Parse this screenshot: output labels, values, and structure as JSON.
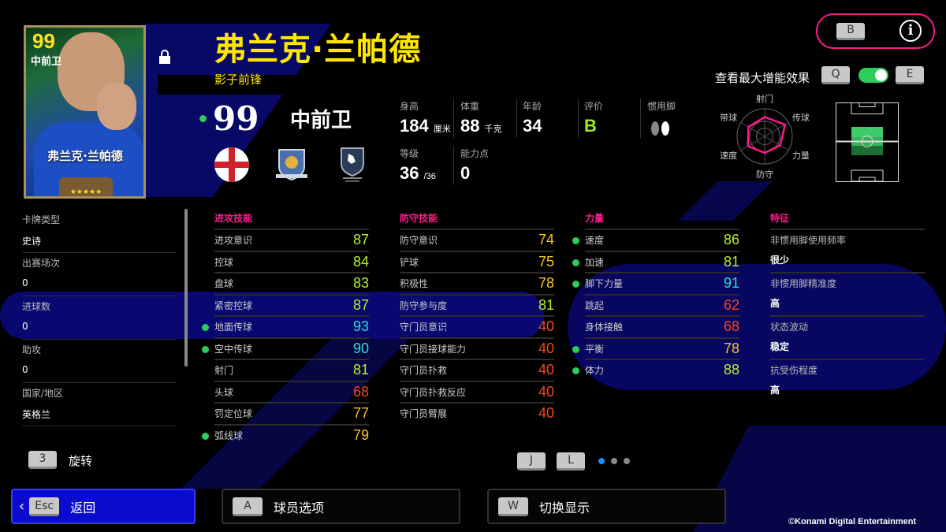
{
  "player": {
    "name": "弗兰克·兰帕德",
    "playing_style": "影子前锋",
    "overall": "99",
    "position": "中前卫",
    "card_stars": "★★★★★"
  },
  "top_right": {
    "b_key": "B",
    "info_icon": "info-icon"
  },
  "boost": {
    "label": "查看最大增能效果",
    "q_key": "Q",
    "e_key": "E",
    "toggle_on": true
  },
  "info": {
    "height_label": "身高",
    "height": "184",
    "height_unit": "厘米",
    "weight_label": "体重",
    "weight": "88",
    "weight_unit": "千克",
    "age_label": "年龄",
    "age": "34",
    "rating_label": "评价",
    "rating": "B",
    "foot_label": "惯用脚",
    "level_label": "等级",
    "level": "36",
    "level_max": "/36",
    "points_label": "能力点",
    "points": "0"
  },
  "radar": {
    "labels": [
      "射门",
      "传球",
      "力量",
      "防守",
      "速度",
      "带球"
    ],
    "values": [
      0.7,
      0.85,
      0.65,
      0.6,
      0.7,
      0.68
    ],
    "color": "#ff1a8c"
  },
  "left_panel": [
    {
      "label": "卡牌类型",
      "value": "史诗"
    },
    {
      "label": "出赛场次",
      "value": "0"
    },
    {
      "label": "进球数",
      "value": "0"
    },
    {
      "label": "助攻",
      "value": "0"
    },
    {
      "label": "国家/地区",
      "value": "英格兰"
    }
  ],
  "stats": [
    {
      "title": "进攻技能",
      "rows": [
        {
          "label": "进攻意识",
          "value": 87,
          "boost": false
        },
        {
          "label": "控球",
          "value": 84,
          "boost": false
        },
        {
          "label": "盘球",
          "value": 83,
          "boost": false
        },
        {
          "label": "紧密控球",
          "value": 87,
          "boost": false
        },
        {
          "label": "地面传球",
          "value": 93,
          "boost": true
        },
        {
          "label": "空中传球",
          "value": 90,
          "boost": true
        },
        {
          "label": "射门",
          "value": 81,
          "boost": false
        },
        {
          "label": "头球",
          "value": 68,
          "boost": false
        },
        {
          "label": "罚定位球",
          "value": 77,
          "boost": false
        },
        {
          "label": "弧线球",
          "value": 79,
          "boost": true
        }
      ]
    },
    {
      "title": "防守技能",
      "rows": [
        {
          "label": "防守意识",
          "value": 74,
          "boost": false
        },
        {
          "label": "铲球",
          "value": 75,
          "boost": false
        },
        {
          "label": "积极性",
          "value": 78,
          "boost": false
        },
        {
          "label": "防守参与度",
          "value": 81,
          "boost": false
        },
        {
          "label": "守门员意识",
          "value": 40,
          "boost": false
        },
        {
          "label": "守门员接球能力",
          "value": 40,
          "boost": false
        },
        {
          "label": "守门员扑救",
          "value": 40,
          "boost": false
        },
        {
          "label": "守门员扑救反应",
          "value": 40,
          "boost": false
        },
        {
          "label": "守门员臂展",
          "value": 40,
          "boost": false
        }
      ]
    },
    {
      "title": "力量",
      "rows": [
        {
          "label": "速度",
          "value": 86,
          "boost": true
        },
        {
          "label": "加速",
          "value": 81,
          "boost": true
        },
        {
          "label": "脚下力量",
          "value": 91,
          "boost": true
        },
        {
          "label": "跳起",
          "value": 62,
          "boost": false
        },
        {
          "label": "身体接触",
          "value": 68,
          "boost": false
        },
        {
          "label": "平衡",
          "value": 78,
          "boost": true
        },
        {
          "label": "体力",
          "value": 88,
          "boost": true
        }
      ]
    }
  ],
  "traits": {
    "title": "特征",
    "rows": [
      {
        "label": "非惯用脚使用频率",
        "value": "很少"
      },
      {
        "label": "非惯用脚精准度",
        "value": "高"
      },
      {
        "label": "状态波动",
        "value": "稳定"
      },
      {
        "label": "抗受伤程度",
        "value": "高"
      }
    ]
  },
  "colors": {
    "cyan": "#2ee0d2",
    "green": "#b6f032",
    "yellow": "#f7c22a",
    "red": "#f2481f",
    "accent": "#ff1a8c",
    "title": "#ffe600"
  },
  "controls": {
    "rotate_key": "3",
    "rotate_label": "旋转",
    "j_key": "J",
    "l_key": "L",
    "page": 1,
    "pages": 3
  },
  "buttons": [
    {
      "key": "Esc",
      "label": "返回"
    },
    {
      "key": "A",
      "label": "球员选项"
    },
    {
      "key": "W",
      "label": "切换显示"
    }
  ],
  "copyright": "©Konami Digital Entertainment"
}
